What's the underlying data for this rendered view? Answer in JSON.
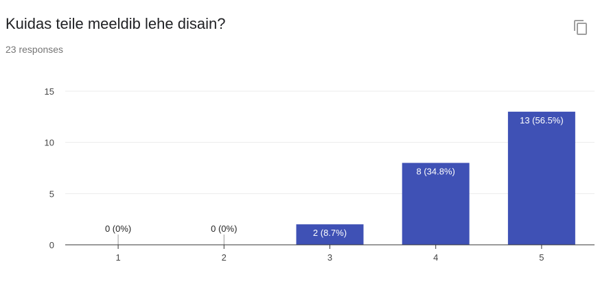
{
  "card": {
    "title": "Kuidas teile meeldib lehe disain?",
    "responses": "23 responses",
    "copy_icon": "copy-icon"
  },
  "colors": {
    "bar": "#3f51b5",
    "grid": "#ebebeb",
    "axis": "#333333",
    "tick_text": "#444444",
    "title": "#202124",
    "subtitle": "#757575",
    "icon": "#9e9e9e"
  },
  "chart_data": {
    "type": "bar",
    "title": "",
    "xlabel": "",
    "ylabel": "",
    "categories": [
      "1",
      "2",
      "3",
      "4",
      "5"
    ],
    "values": [
      0,
      0,
      2,
      8,
      13
    ],
    "data_labels": [
      "0 (0%)",
      "0 (0%)",
      "2 (8.7%)",
      "8 (34.8%)",
      "13 (56.5%)"
    ],
    "ylim": [
      0,
      15
    ],
    "y_ticks": [
      "0",
      "5",
      "10",
      "15"
    ],
    "grid": true
  }
}
